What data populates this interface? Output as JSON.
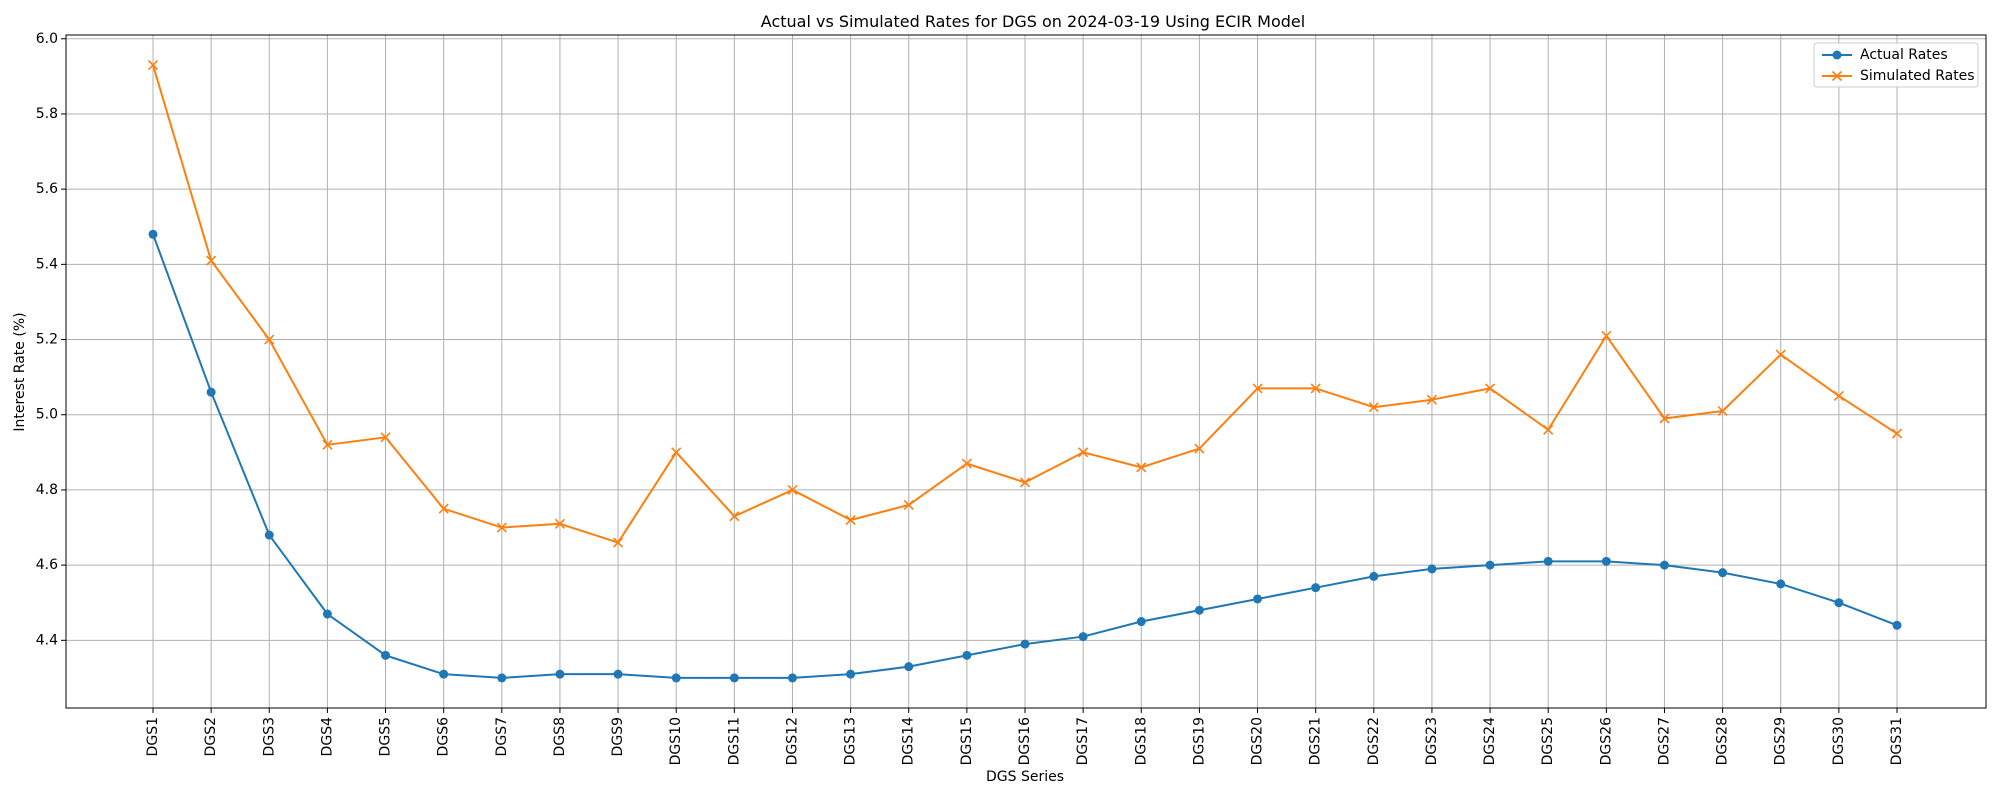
{
  "chart_data": {
    "type": "line",
    "title": "Actual vs Simulated Rates for DGS on 2024-03-19 Using ECIR Model",
    "xlabel": "DGS Series",
    "ylabel": "Interest Rate (%)",
    "categories": [
      "DGS1",
      "DGS2",
      "DGS3",
      "DGS4",
      "DGS5",
      "DGS6",
      "DGS7",
      "DGS8",
      "DGS9",
      "DGS10",
      "DGS11",
      "DGS12",
      "DGS13",
      "DGS14",
      "DGS15",
      "DGS16",
      "DGS17",
      "DGS18",
      "DGS19",
      "DGS20",
      "DGS21",
      "DGS22",
      "DGS23",
      "DGS24",
      "DGS25",
      "DGS26",
      "DGS27",
      "DGS28",
      "DGS29",
      "DGS30",
      "DGS31"
    ],
    "ylim": [
      4.22,
      6.01
    ],
    "yticks": [
      4.4,
      4.6,
      4.8,
      5.0,
      5.2,
      5.4,
      5.6,
      5.8,
      6.0
    ],
    "ytick_labels": [
      "4.4",
      "4.6",
      "4.8",
      "5.0",
      "5.2",
      "5.4",
      "5.6",
      "5.8",
      "6.0"
    ],
    "grid": true,
    "legend_position": "top-right",
    "series": [
      {
        "name": "Actual Rates",
        "color": "#1f77b4",
        "marker": "circle",
        "values": [
          5.48,
          5.06,
          4.68,
          4.47,
          4.36,
          4.31,
          4.3,
          4.31,
          4.31,
          4.3,
          4.3,
          4.3,
          4.31,
          4.33,
          4.36,
          4.39,
          4.41,
          4.45,
          4.48,
          4.51,
          4.54,
          4.57,
          4.59,
          4.6,
          4.61,
          4.61,
          4.6,
          4.58,
          4.55,
          4.5,
          4.44
        ]
      },
      {
        "name": "Simulated Rates",
        "color": "#ff7f0e",
        "marker": "x",
        "values": [
          5.93,
          5.41,
          5.2,
          4.92,
          4.94,
          4.75,
          4.7,
          4.71,
          4.66,
          4.9,
          4.73,
          4.8,
          4.72,
          4.76,
          4.87,
          4.82,
          4.9,
          4.86,
          4.91,
          5.07,
          5.07,
          5.02,
          5.04,
          5.07,
          4.96,
          5.21,
          4.99,
          5.01,
          5.16,
          5.05,
          4.95
        ]
      }
    ]
  }
}
